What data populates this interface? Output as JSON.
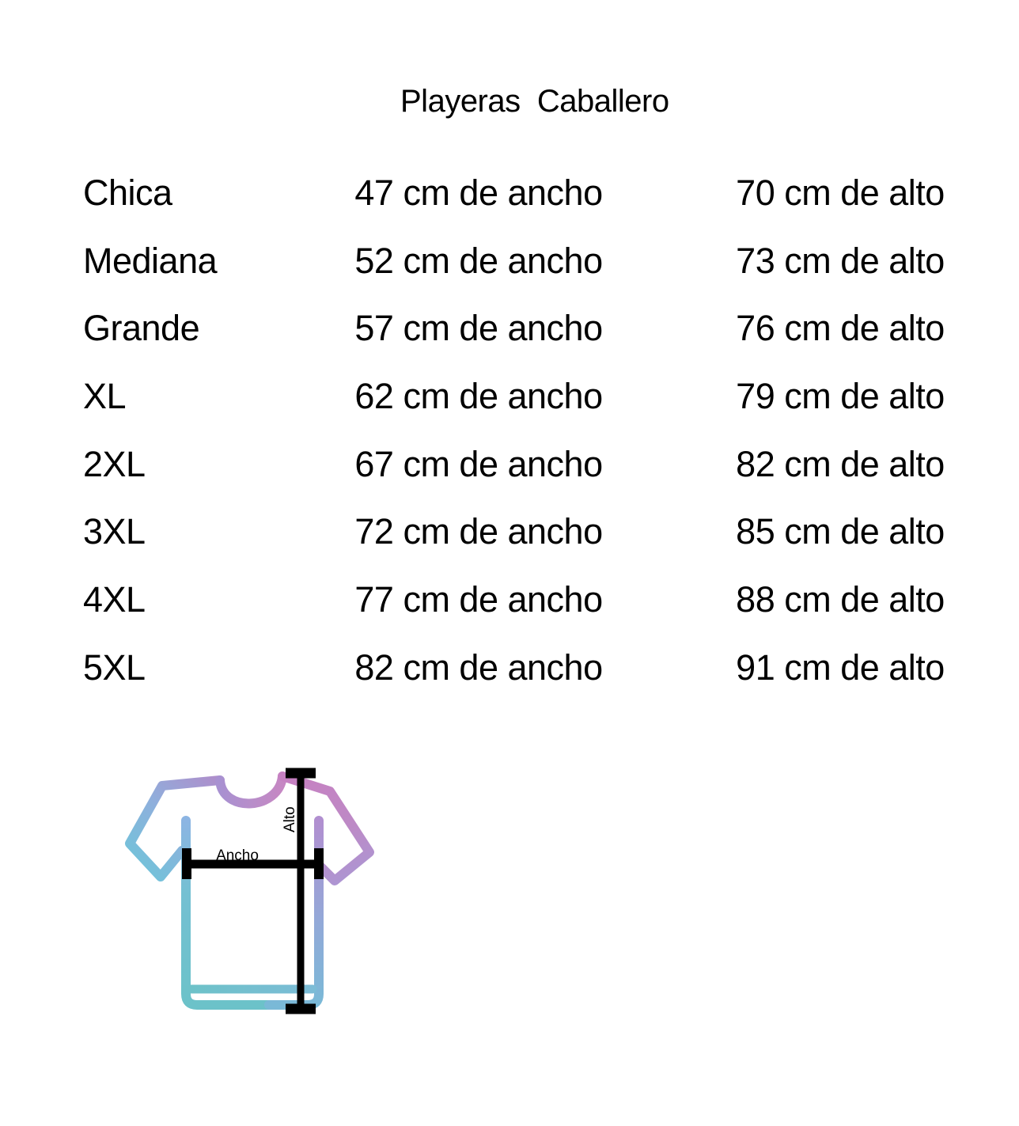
{
  "title": "Playeras  Caballero",
  "table": {
    "rows": [
      {
        "size": "Chica",
        "ancho": "47 cm de ancho",
        "alto": "70 cm de alto"
      },
      {
        "size": "Mediana",
        "ancho": "52 cm de ancho",
        "alto": "73 cm de alto"
      },
      {
        "size": "Grande",
        "ancho": "57 cm de ancho",
        "alto": "76 cm de alto"
      },
      {
        "size": "XL",
        "ancho": "62 cm de ancho",
        "alto": "79 cm de alto"
      },
      {
        "size": "2XL",
        "ancho": "67 cm de ancho",
        "alto": "82 cm de alto"
      },
      {
        "size": "3XL",
        "ancho": "72 cm de ancho",
        "alto": "85 cm de alto"
      },
      {
        "size": "4XL",
        "ancho": "77 cm de ancho",
        "alto": "88 cm de alto"
      },
      {
        "size": "5XL",
        "ancho": "82 cm de ancho",
        "alto": "91 cm de alto"
      }
    ]
  },
  "diagram": {
    "width_label": "Ancho",
    "height_label": "Alto",
    "colors": {
      "collar_purple": "#b18fcb",
      "sleeve_pink": "#c681c2",
      "sleeve_blue": "#74c2dc",
      "body_teal": "#6cc2c9",
      "seam_periwinkle": "#8cb5e3",
      "seam_purple": "#b18fd0",
      "measure_line": "#000000"
    }
  }
}
